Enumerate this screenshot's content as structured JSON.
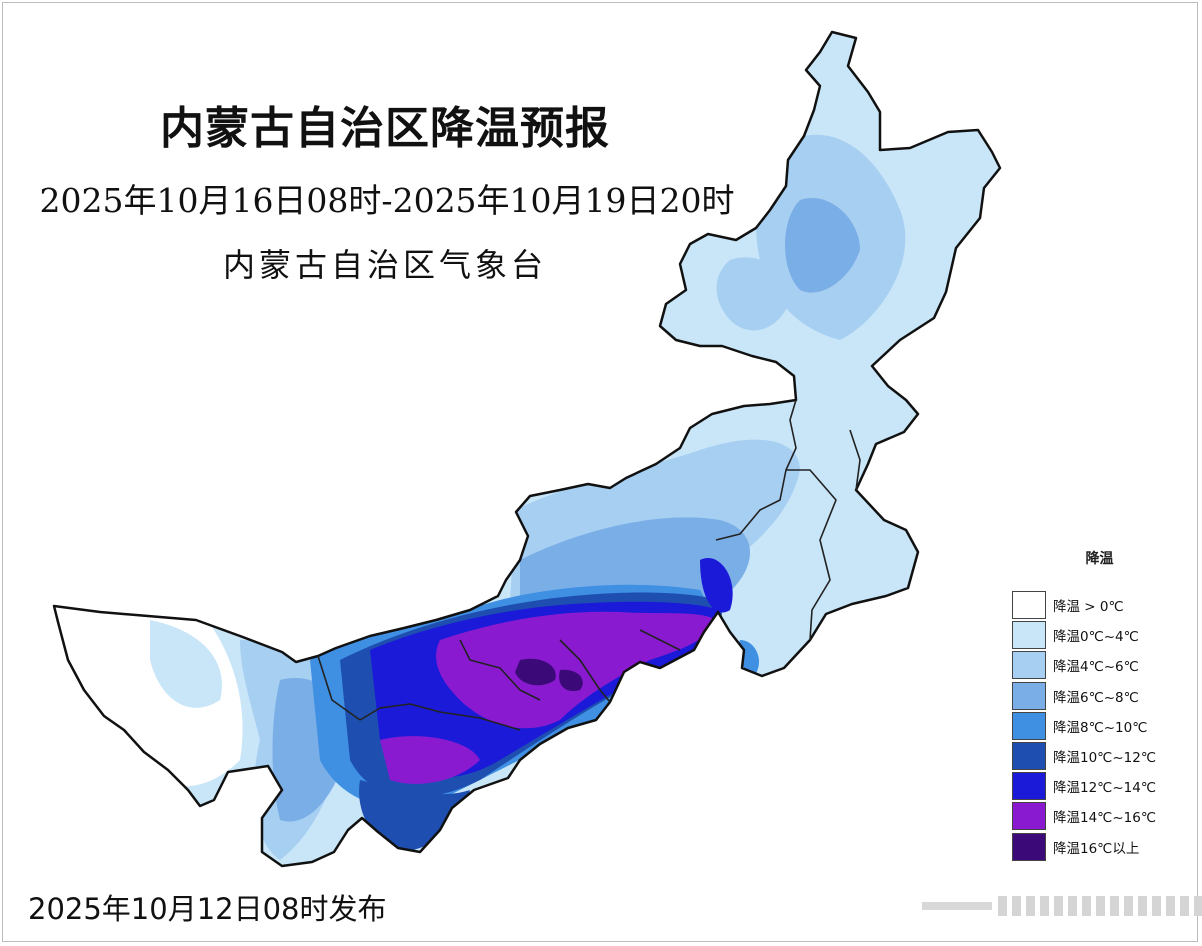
{
  "map": {
    "title": "内蒙古自治区降温预报",
    "subtitle": "2025年10月16日08时-2025年10月19日20时",
    "issuer": "内蒙古自治区气象台",
    "issue_time": "2025年10月12日08时发布",
    "colors": {
      "outline": "#111111",
      "c0": "#ffffff",
      "c1": "#c8e6f8",
      "c2": "#a7cff2",
      "c3": "#7aaee6",
      "c4": "#3f8fe3",
      "c5": "#1e4fb0",
      "c6": "#1a1ad8",
      "c7": "#8a1ad0",
      "c8": "#3c0a78"
    }
  },
  "legend": {
    "title": "降温",
    "items": [
      {
        "label": "降温 > 0℃",
        "color": "#ffffff"
      },
      {
        "label": "降温0℃~4℃",
        "color": "#c8e6f8"
      },
      {
        "label": "降温4℃~6℃",
        "color": "#a7cff2"
      },
      {
        "label": "降温6℃~8℃",
        "color": "#7aaee6"
      },
      {
        "label": "降温8℃~10℃",
        "color": "#3f8fe3"
      },
      {
        "label": "降温10℃~12℃",
        "color": "#1e4fb0"
      },
      {
        "label": "降温12℃~14℃",
        "color": "#1a1ad8"
      },
      {
        "label": "降温14℃~16℃",
        "color": "#8a1ad0"
      },
      {
        "label": "降温16℃以上",
        "color": "#3c0a78"
      }
    ]
  }
}
